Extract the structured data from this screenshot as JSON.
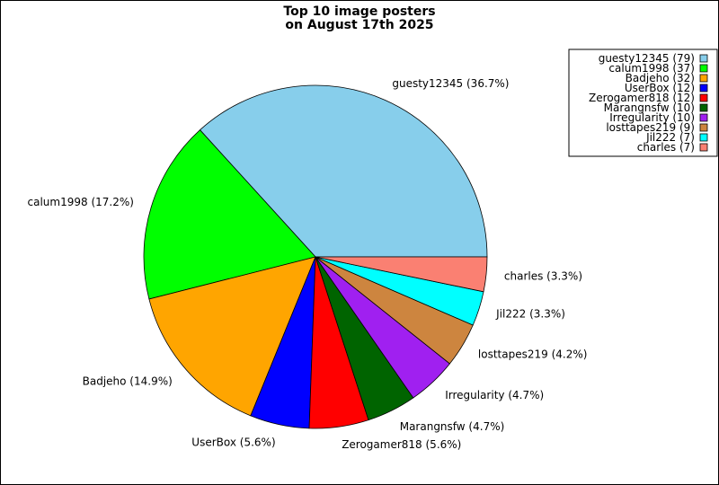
{
  "chart_data": {
    "type": "pie",
    "title_lines": [
      "Top 10 image posters",
      "on August 17th 2025"
    ],
    "start_angle_deg": 0,
    "direction": "counterclockwise",
    "legend_position": "top-right",
    "slices": [
      {
        "name": "guesty12345",
        "value": 79,
        "percent": "36.7%",
        "color": "#87ceeb",
        "legend": "guesty12345 (79)",
        "label": "guesty12345 (36.7%)"
      },
      {
        "name": "calum1998",
        "value": 37,
        "percent": "17.2%",
        "color": "#00ff00",
        "legend": "calum1998 (37)",
        "label": "calum1998 (17.2%)"
      },
      {
        "name": "Badjeho",
        "value": 32,
        "percent": "14.9%",
        "color": "#ffa500",
        "legend": "Badjeho (32)",
        "label": "Badjeho (14.9%)"
      },
      {
        "name": "UserBox",
        "value": 12,
        "percent": "5.6%",
        "color": "#0000ff",
        "legend": "UserBox (12)",
        "label": "UserBox (5.6%)"
      },
      {
        "name": "Zerogamer818",
        "value": 12,
        "percent": "5.6%",
        "color": "#ff0000",
        "legend": "Zerogamer818 (12)",
        "label": "Zerogamer818 (5.6%)"
      },
      {
        "name": "Marangnsfw",
        "value": 10,
        "percent": "4.7%",
        "color": "#006400",
        "legend": "Marangnsfw (10)",
        "label": "Marangnsfw (4.7%)"
      },
      {
        "name": "Irregularity",
        "value": 10,
        "percent": "4.7%",
        "color": "#a020f0",
        "legend": "Irregularity (10)",
        "label": "Irregularity (4.7%)"
      },
      {
        "name": "losttapes219",
        "value": 9,
        "percent": "4.2%",
        "color": "#cd853f",
        "legend": "losttapes219 (9)",
        "label": "losttapes219 (4.2%)"
      },
      {
        "name": "Jil222",
        "value": 7,
        "percent": "3.3%",
        "color": "#00ffff",
        "legend": "Jil222 (7)",
        "label": "Jil222 (3.3%)"
      },
      {
        "name": "charles",
        "value": 7,
        "percent": "3.3%",
        "color": "#fa8072",
        "legend": "charles (7)",
        "label": "charles (3.3%)"
      }
    ]
  }
}
